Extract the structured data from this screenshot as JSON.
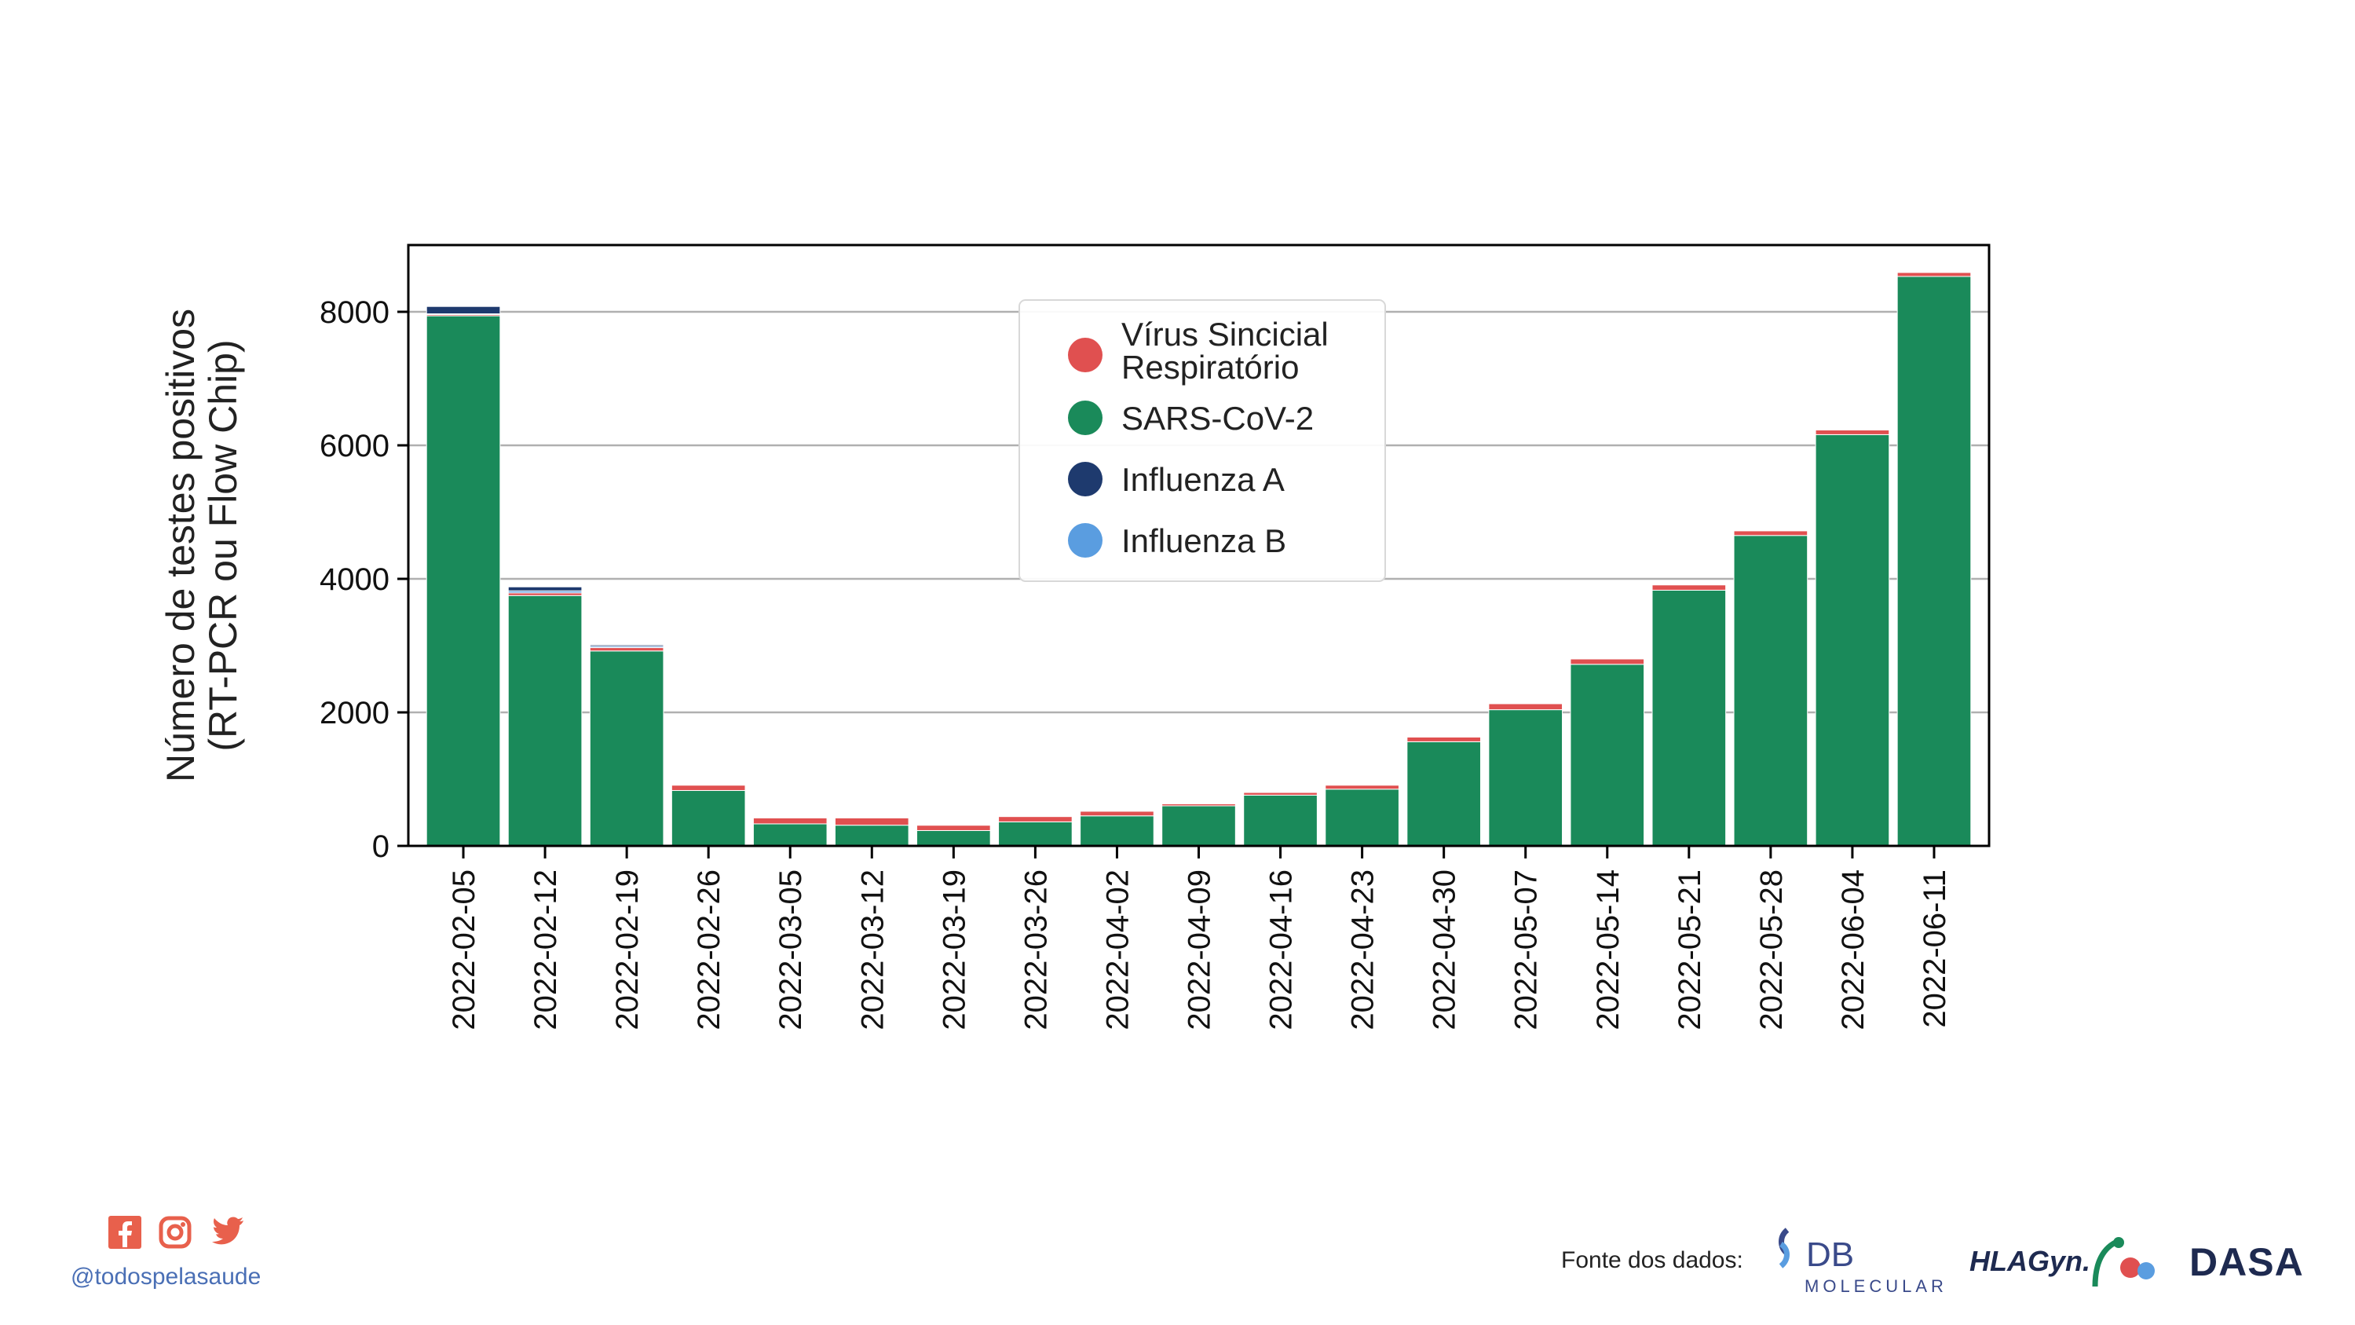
{
  "chart_data": {
    "type": "bar",
    "stacked": true,
    "categories": [
      "2022-02-05",
      "2022-02-12",
      "2022-02-19",
      "2022-02-26",
      "2022-03-05",
      "2022-03-12",
      "2022-03-19",
      "2022-03-26",
      "2022-04-02",
      "2022-04-09",
      "2022-04-16",
      "2022-04-23",
      "2022-04-30",
      "2022-05-07",
      "2022-05-14",
      "2022-05-21",
      "2022-05-28",
      "2022-06-04",
      "2022-06-11"
    ],
    "series": [
      {
        "name": "SARS-CoV-2",
        "color": "#1a8a5a",
        "values": [
          7940,
          3750,
          2920,
          830,
          330,
          310,
          230,
          360,
          450,
          600,
          760,
          850,
          1560,
          2040,
          2720,
          3830,
          4650,
          6160,
          8530
        ]
      },
      {
        "name": "Vírus Sincicial Respiratório",
        "color": "#e05050",
        "values": [
          20,
          40,
          50,
          80,
          90,
          110,
          80,
          80,
          70,
          30,
          40,
          60,
          70,
          90,
          80,
          80,
          70,
          70,
          60
        ]
      },
      {
        "name": "Influenza B",
        "color": "#5a9de0",
        "values": [
          10,
          30,
          20,
          10,
          5,
          5,
          5,
          5,
          5,
          5,
          5,
          5,
          5,
          5,
          5,
          5,
          5,
          5,
          5
        ]
      },
      {
        "name": "Influenza A",
        "color": "#1e3a6e",
        "values": [
          110,
          60,
          20,
          10,
          5,
          5,
          5,
          5,
          5,
          5,
          5,
          5,
          5,
          5,
          5,
          5,
          5,
          5,
          5
        ]
      }
    ],
    "ylabel": "Número de testes positivos\n(RT-PCR ou Flow Chip)",
    "yticks": [
      0,
      2000,
      4000,
      6000,
      8000
    ],
    "ylim": [
      0,
      9000
    ],
    "grid": "horizontal",
    "legend_position": "top-center",
    "legend": [
      {
        "label_lines": [
          "Vírus Sincicial",
          "Respiratório"
        ],
        "color": "#e05050"
      },
      {
        "label_lines": [
          "SARS-CoV-2"
        ],
        "color": "#1a8a5a"
      },
      {
        "label_lines": [
          "Influenza A"
        ],
        "color": "#1e3a6e"
      },
      {
        "label_lines": [
          "Influenza B"
        ],
        "color": "#5a9de0"
      }
    ]
  },
  "footer": {
    "handle": "@todospelasaude",
    "social_icons": [
      {
        "name": "facebook-icon",
        "color": "#e8604c"
      },
      {
        "name": "instagram-icon",
        "color": "#e8604c"
      },
      {
        "name": "twitter-icon",
        "color": "#e8604c"
      }
    ],
    "source_label": "Fonte dos dados:",
    "logos": {
      "db": {
        "text": "DB",
        "subtext": "MOLECULAR",
        "color": "#3a4a8a"
      },
      "hlagyn": {
        "text": "HLAGyn.",
        "color": "#1e2a50"
      },
      "dasa": {
        "text": "DASA",
        "color": "#1e2a50"
      }
    }
  }
}
